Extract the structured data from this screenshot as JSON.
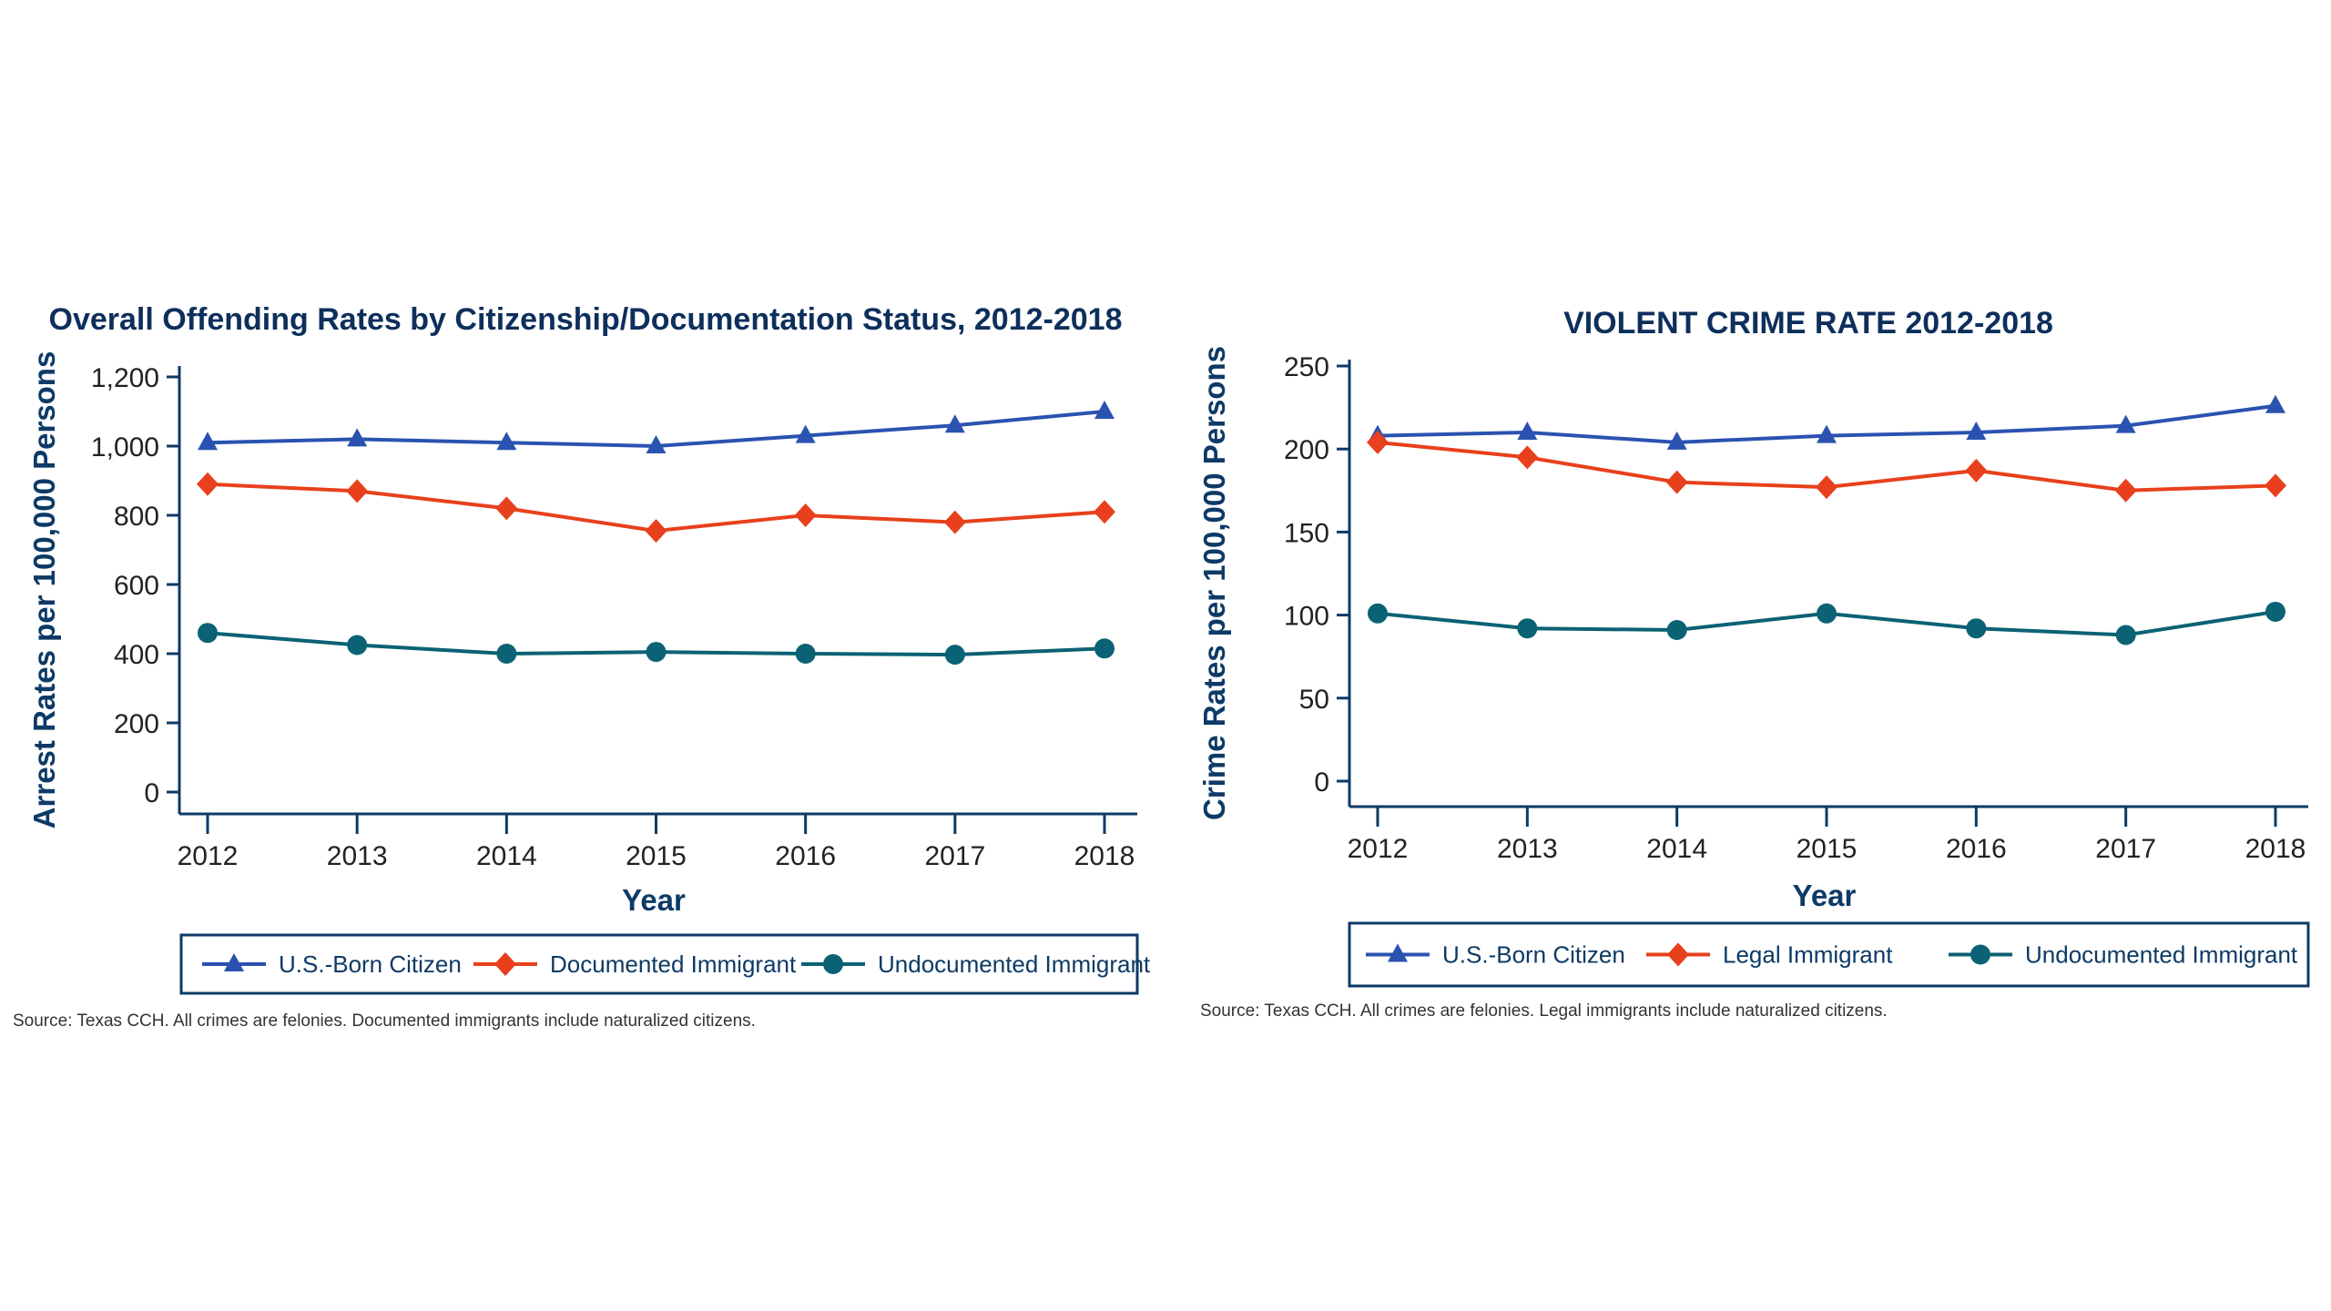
{
  "chart_data": [
    {
      "type": "line",
      "title": "Overall Offending Rates by Citizenship/Documentation Status, 2012-2018",
      "xlabel": "Year",
      "ylabel": "Arrest Rates per 100,000 Persons",
      "x": [
        "2012",
        "2013",
        "2014",
        "2015",
        "2016",
        "2017",
        "2018"
      ],
      "ylim": [
        0,
        1200
      ],
      "yticks": [
        0,
        200,
        400,
        600,
        800,
        1000,
        1200
      ],
      "ytick_labels": [
        "0",
        "200",
        "400",
        "600",
        "800",
        "1,000",
        "1,200"
      ],
      "grid": false,
      "legend_position": "bottom",
      "series": [
        {
          "name": "U.S.-Born Citizen",
          "marker": "triangle",
          "color": "#2a52b0",
          "values": [
            1010,
            1020,
            1010,
            1000,
            1030,
            1060,
            1100
          ]
        },
        {
          "name": "Documented Immigrant",
          "marker": "diamond",
          "color": "#e8401c",
          "values": [
            890,
            870,
            820,
            755,
            800,
            780,
            810
          ]
        },
        {
          "name": "Undocumented Immigrant",
          "marker": "circle",
          "color": "#0b6275",
          "values": [
            460,
            425,
            400,
            405,
            400,
            397,
            415
          ]
        }
      ],
      "source": "Source: Texas CCH. All crimes are felonies. Documented immigrants include naturalized citizens."
    },
    {
      "type": "line",
      "title": "VIOLENT CRIME RATE 2012-2018",
      "xlabel": "Year",
      "ylabel": "Crime Rates per 100,000 Persons",
      "x": [
        "2012",
        "2013",
        "2014",
        "2015",
        "2016",
        "2017",
        "2018"
      ],
      "ylim": [
        0,
        250
      ],
      "yticks": [
        0,
        50,
        100,
        150,
        200,
        250
      ],
      "ytick_labels": [
        "0",
        "50",
        "100",
        "150",
        "200",
        "250"
      ],
      "grid": false,
      "legend_position": "bottom",
      "series": [
        {
          "name": "U.S.-Born Citizen",
          "marker": "triangle",
          "color": "#2a52b0",
          "values": [
            208,
            210,
            204,
            208,
            210,
            214,
            226
          ]
        },
        {
          "name": "Legal Immigrant",
          "marker": "diamond",
          "color": "#e8401c",
          "values": [
            204,
            195,
            180,
            177,
            187,
            175,
            178
          ]
        },
        {
          "name": "Undocumented Immigrant",
          "marker": "circle",
          "color": "#0b6275",
          "values": [
            101,
            92,
            91,
            101,
            92,
            88,
            102
          ]
        }
      ],
      "source": "Source: Texas CCH. All crimes are felonies. Legal immigrants include naturalized citizens."
    }
  ]
}
